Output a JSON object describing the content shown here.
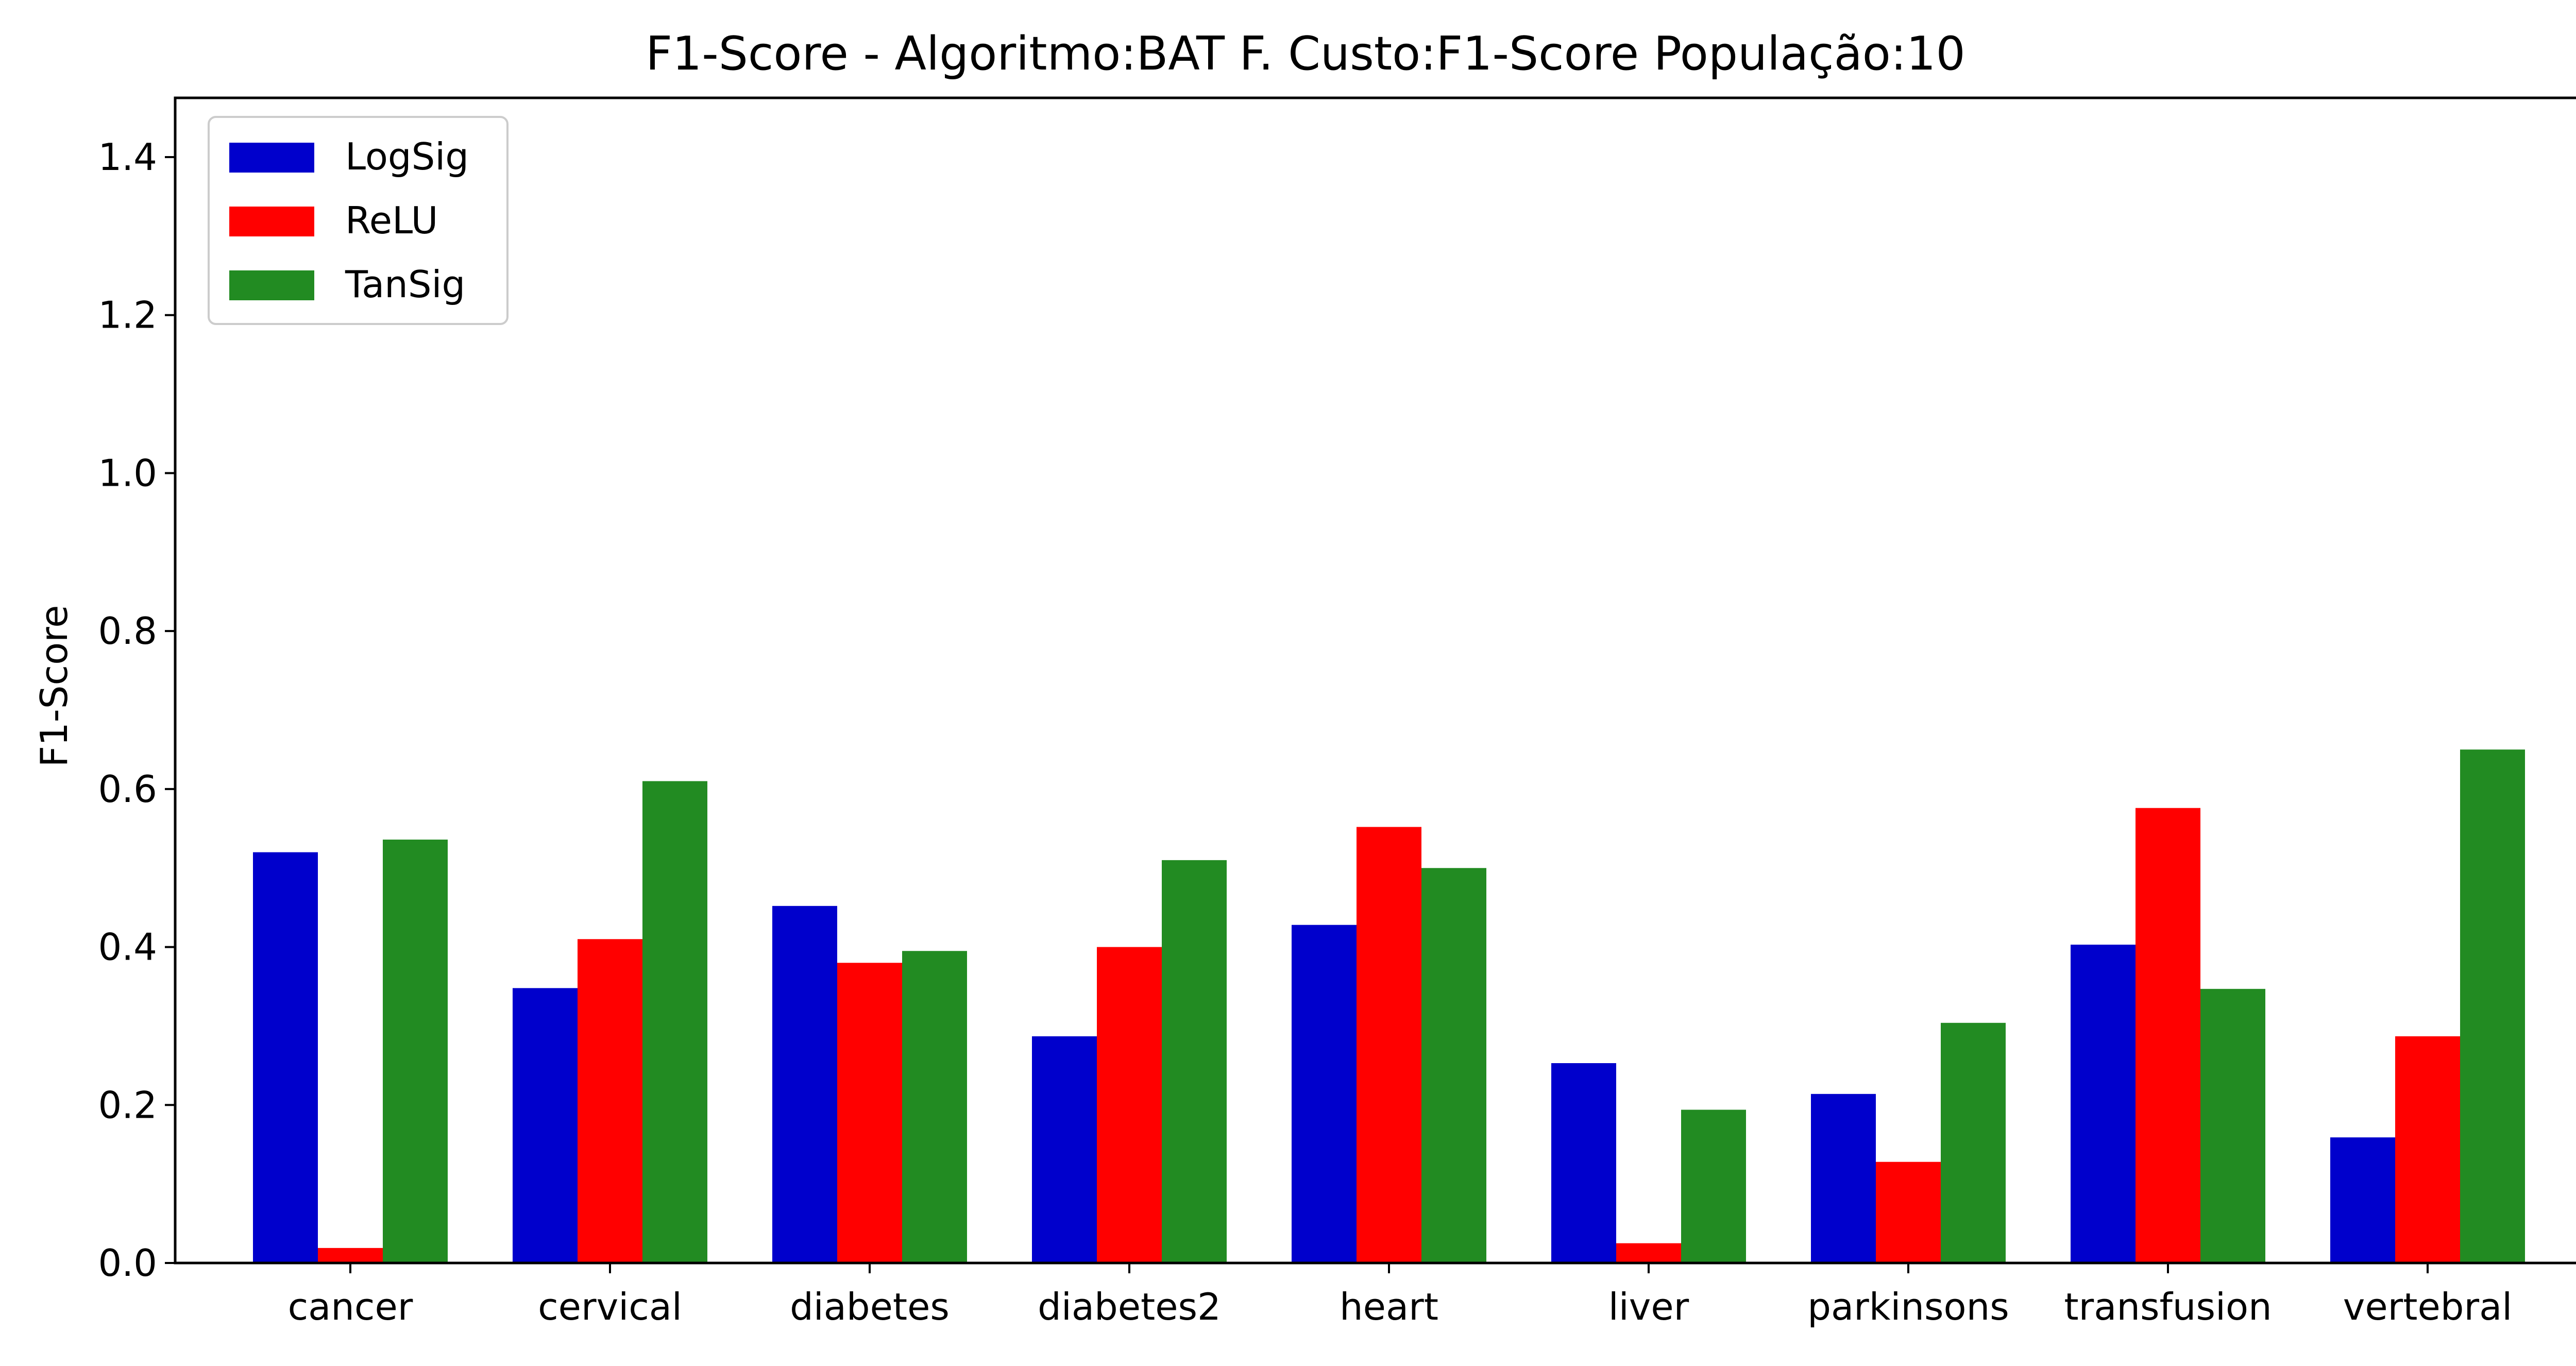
{
  "chart_data": {
    "type": "bar",
    "title": "F1-Score - Algoritmo:BAT F. Custo:F1-Score População:10",
    "xlabel": "",
    "ylabel": "F1-Score",
    "ylim": [
      0,
      1.475
    ],
    "yticks": [
      "0.0",
      "0.2",
      "0.4",
      "0.6",
      "0.8",
      "1.0",
      "1.2",
      "1.4"
    ],
    "ytick_values": [
      0,
      0.2,
      0.4,
      0.6,
      0.8,
      1.0,
      1.2,
      1.4
    ],
    "grid": false,
    "legend_position": "top-left",
    "categories": [
      "cancer",
      "cervical",
      "diabetes",
      "diabetes2",
      "heart",
      "liver",
      "parkinsons",
      "transfusion",
      "vertebral"
    ],
    "series": [
      {
        "name": "LogSig",
        "color": "#0000cc",
        "values": [
          0.52,
          0.348,
          0.452,
          0.287,
          0.428,
          0.253,
          0.214,
          0.403,
          0.159
        ]
      },
      {
        "name": "ReLU",
        "color": "#ff0000",
        "values": [
          0.019,
          0.41,
          0.38,
          0.4,
          0.552,
          0.025,
          0.128,
          0.576,
          0.287
        ]
      },
      {
        "name": "TanSig",
        "color": "#228b22",
        "values": [
          0.536,
          0.61,
          0.395,
          0.51,
          0.5,
          0.194,
          0.304,
          0.347,
          0.65
        ]
      }
    ]
  }
}
